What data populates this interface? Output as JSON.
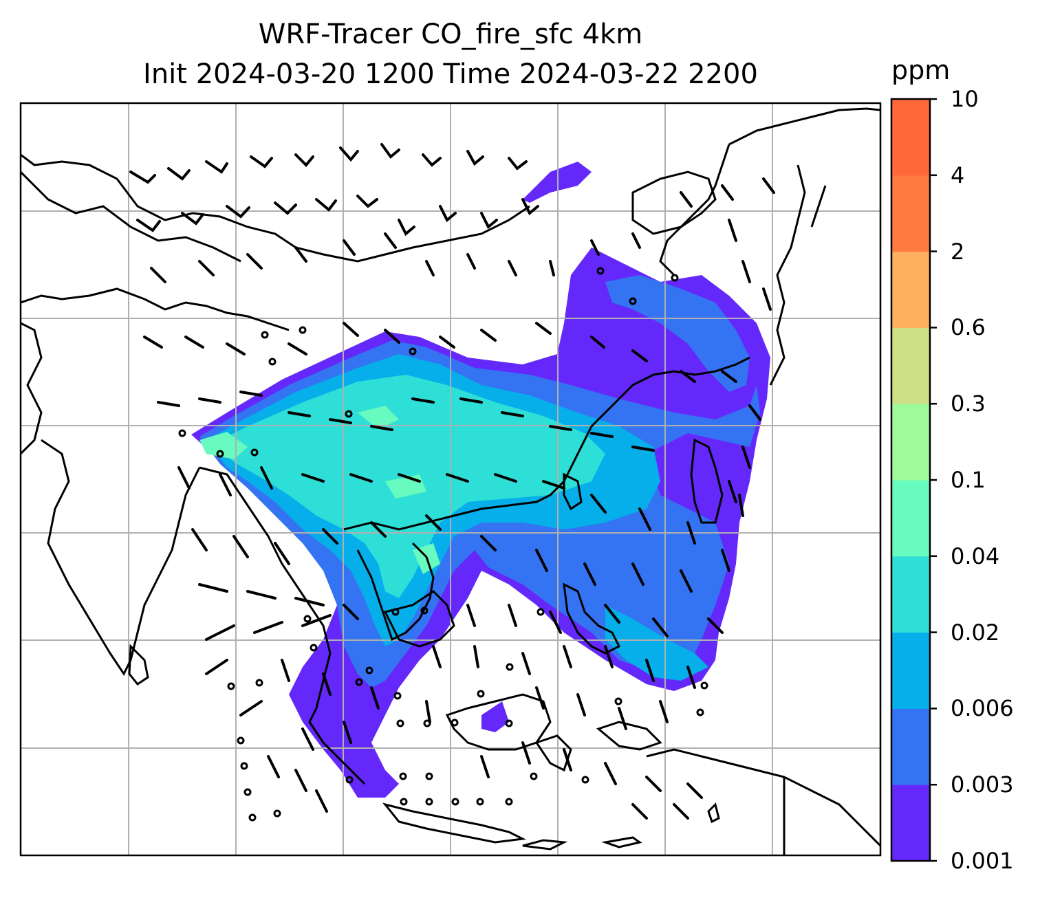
{
  "figure": {
    "title_line1": "WRF-Tracer CO_fire_sfc 4km",
    "title_line2": "Init 2024-03-20 1200 Time 2024-03-22 2200"
  },
  "colorbar": {
    "unit": "ppm",
    "levels": [
      "0.001",
      "0.003",
      "0.006",
      "0.02",
      "0.04",
      "0.1",
      "0.3",
      "0.6",
      "2",
      "4",
      "10"
    ],
    "colors": [
      "#6429fa",
      "#3474f2",
      "#06aeea",
      "#2ddfd6",
      "#68fbbf",
      "#9dfb9a",
      "#cde086",
      "#ffb05e",
      "#ff7a3f",
      "#ff6839",
      "#ff2a18"
    ]
  },
  "map": {
    "gridlines": true,
    "wind_barbs": true,
    "field": "CO_fire_sfc",
    "coastlines_color": "#000000"
  }
}
